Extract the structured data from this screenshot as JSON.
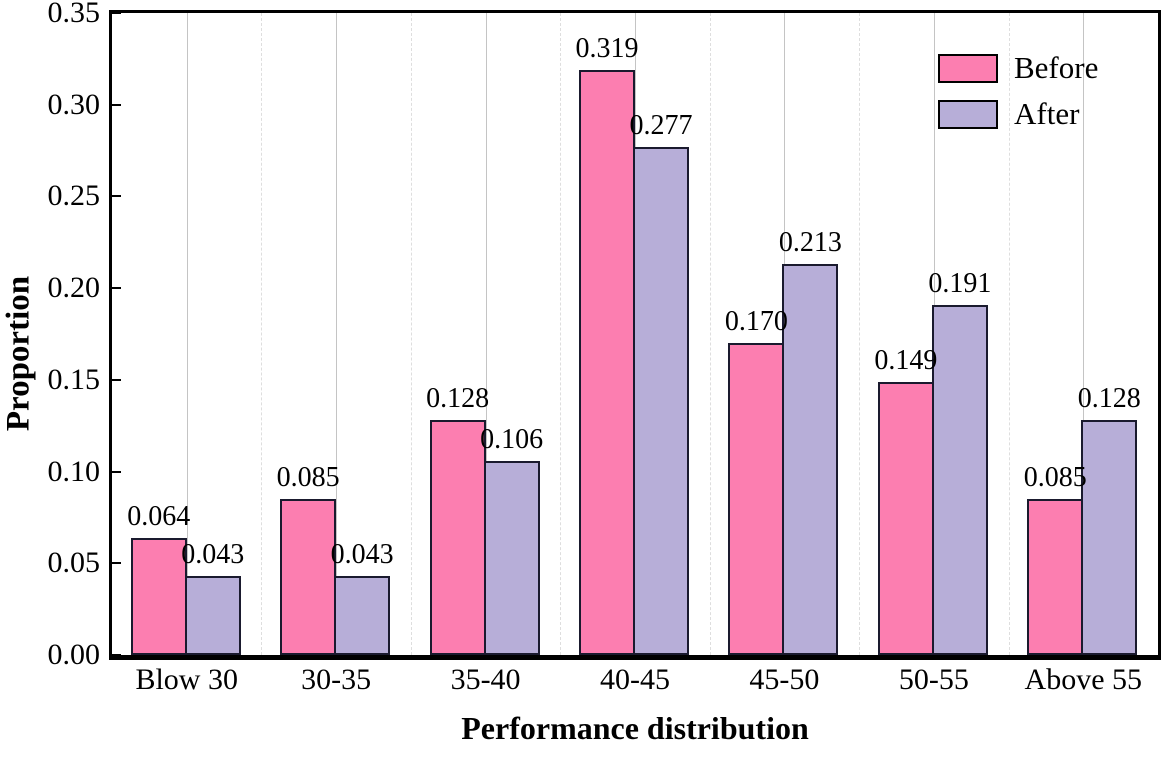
{
  "chart_data": {
    "type": "bar",
    "title": "",
    "xlabel": "Performance distribution",
    "ylabel": "Proportion",
    "categories": [
      "Blow 30",
      "30-35",
      "35-40",
      "40-45",
      "45-50",
      "50-55",
      "Above 55"
    ],
    "series": [
      {
        "name": "Before",
        "color": "#fc7eb0",
        "values": [
          0.064,
          0.085,
          0.128,
          0.319,
          0.17,
          0.149,
          0.085
        ]
      },
      {
        "name": "After",
        "color": "#b7aed8",
        "values": [
          0.043,
          0.043,
          0.106,
          0.277,
          0.213,
          0.191,
          0.128
        ]
      }
    ],
    "ylim": [
      0,
      0.35
    ],
    "yticks": [
      0.0,
      0.05,
      0.1,
      0.15,
      0.2,
      0.25,
      0.3,
      0.35
    ],
    "ytick_decimals": 2,
    "value_label_decimals": 3,
    "legend_position": "top-right",
    "grid": {
      "vertical_center_lines": "solid",
      "vertical_boundary_lines": "dashed",
      "horizontal_lines": "off"
    },
    "styles": {
      "bar_outline_color": "#1a1a2e",
      "grid_center_color": "#c4c4c4",
      "grid_boundary_color": "#dedede",
      "axis_color": "#000000"
    }
  }
}
